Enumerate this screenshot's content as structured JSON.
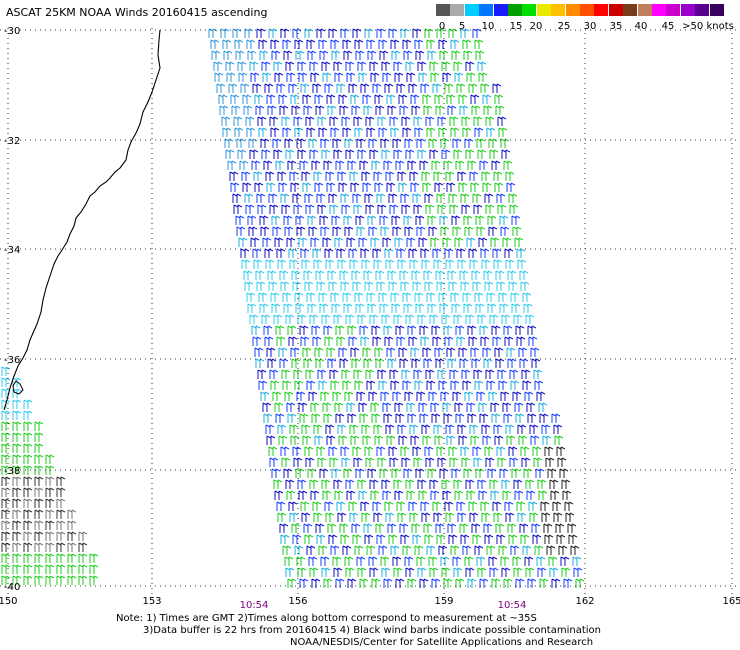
{
  "title": "ASCAT 25KM NOAA Winds 20160415 ascending",
  "colorbar": {
    "segments": [
      {
        "color": "#555555"
      },
      {
        "color": "#aaaaaa"
      },
      {
        "color": "#00ccff"
      },
      {
        "color": "#0077ff"
      },
      {
        "color": "#1a1aff"
      },
      {
        "color": "#00a000"
      },
      {
        "color": "#00e000"
      },
      {
        "color": "#e8e800"
      },
      {
        "color": "#ffc000"
      },
      {
        "color": "#ff8c00"
      },
      {
        "color": "#ff5000"
      },
      {
        "color": "#ff0000"
      },
      {
        "color": "#cc0000"
      },
      {
        "color": "#7a3b1a"
      },
      {
        "color": "#c08060"
      },
      {
        "color": "#ff00ff"
      },
      {
        "color": "#cc00cc"
      },
      {
        "color": "#9900cc"
      },
      {
        "color": "#5a0090"
      },
      {
        "color": "#3a0060"
      }
    ],
    "labels": [
      "0",
      "5",
      "10",
      "15",
      "20",
      "25",
      "30",
      "35",
      "40",
      "45",
      ">50 knots"
    ]
  },
  "axes": {
    "lat_labels": [
      "-30",
      "-32",
      "-34",
      "-36",
      "-38",
      "-40"
    ],
    "lon_labels": [
      "150",
      "153",
      "156",
      "159",
      "162",
      "165"
    ]
  },
  "times": [
    "10:54",
    "10:54"
  ],
  "footer": {
    "line1": "Note: 1) Times are GMT 2)Times along bottom correspond to measurement at ~35S",
    "line2": "3)Data buffer is 22 hrs from 20160415 4) Black wind barbs indicate possible contamination",
    "line3": "NOAA/NESDIS/Center for Satellite Applications and Research"
  },
  "colors": {
    "time_label": "#800080",
    "coastline": "#000000",
    "grid": "#000000"
  }
}
